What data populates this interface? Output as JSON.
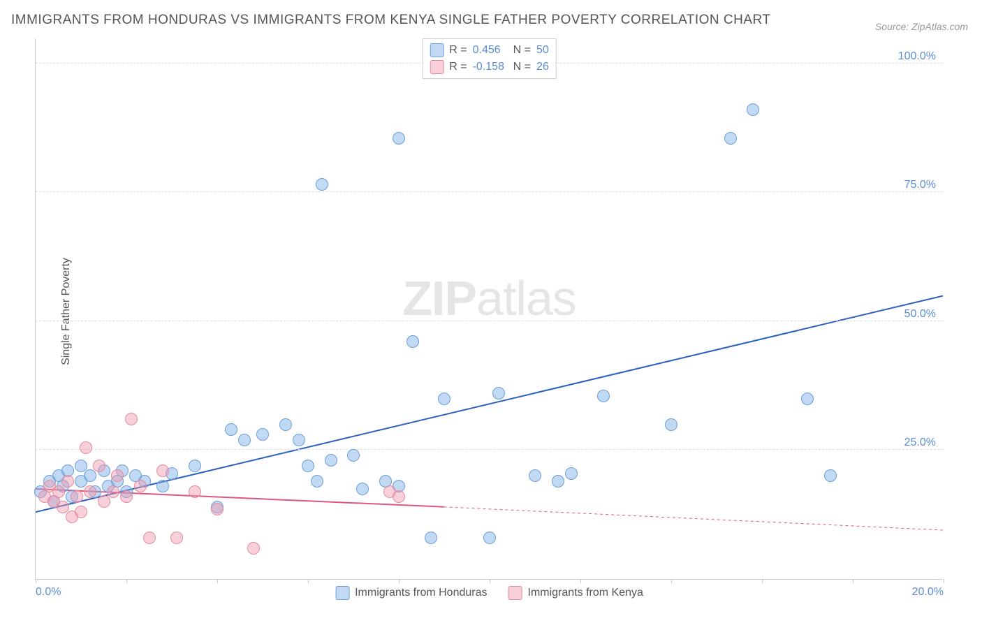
{
  "chart": {
    "type": "scatter",
    "title": "IMMIGRANTS FROM HONDURAS VS IMMIGRANTS FROM KENYA SINGLE FATHER POVERTY CORRELATION CHART",
    "source": "Source: ZipAtlas.com",
    "ylabel": "Single Father Poverty",
    "watermark_zip": "ZIP",
    "watermark_atlas": "atlas",
    "xlim": [
      0,
      20
    ],
    "ylim": [
      0,
      105
    ],
    "yticks": [
      25,
      50,
      75,
      100
    ],
    "ytick_labels": [
      "25.0%",
      "50.0%",
      "75.0%",
      "100.0%"
    ],
    "xtick_marks": [
      0,
      2,
      4,
      6,
      8,
      10,
      12,
      14,
      16,
      18,
      20
    ],
    "xaxis_labels": [
      {
        "x": 0,
        "label": "0.0%"
      },
      {
        "x": 20,
        "label": "20.0%"
      }
    ],
    "background_color": "#ffffff",
    "grid_color": "#dddddd",
    "axis_color": "#cccccc",
    "tick_label_color": "#5a8dd6",
    "point_radius": 9,
    "line_width": 2,
    "series": [
      {
        "name": "Immigrants from Honduras",
        "r_value": "0.456",
        "n_value": "50",
        "point_fill": "rgba(120,170,230,0.45)",
        "point_stroke": "#6a9fd8",
        "line_color": "#2b60c0",
        "line_dash_extend": false,
        "trend": {
          "x1": 0,
          "y1": 13,
          "x2": 20,
          "y2": 55
        },
        "data": [
          {
            "x": 0.1,
            "y": 17
          },
          {
            "x": 0.3,
            "y": 19
          },
          {
            "x": 0.4,
            "y": 15
          },
          {
            "x": 0.5,
            "y": 20
          },
          {
            "x": 0.6,
            "y": 18
          },
          {
            "x": 0.7,
            "y": 21
          },
          {
            "x": 0.8,
            "y": 16
          },
          {
            "x": 1.0,
            "y": 19
          },
          {
            "x": 1.0,
            "y": 22
          },
          {
            "x": 1.2,
            "y": 20
          },
          {
            "x": 1.3,
            "y": 17
          },
          {
            "x": 1.5,
            "y": 21
          },
          {
            "x": 1.6,
            "y": 18
          },
          {
            "x": 1.8,
            "y": 19
          },
          {
            "x": 1.9,
            "y": 21
          },
          {
            "x": 2.0,
            "y": 17
          },
          {
            "x": 2.2,
            "y": 20
          },
          {
            "x": 2.4,
            "y": 19
          },
          {
            "x": 2.8,
            "y": 18
          },
          {
            "x": 3.0,
            "y": 20.5
          },
          {
            "x": 3.5,
            "y": 22
          },
          {
            "x": 4.0,
            "y": 14
          },
          {
            "x": 4.3,
            "y": 29
          },
          {
            "x": 4.6,
            "y": 27
          },
          {
            "x": 5.0,
            "y": 28
          },
          {
            "x": 5.5,
            "y": 30
          },
          {
            "x": 5.8,
            "y": 27
          },
          {
            "x": 6.0,
            "y": 22
          },
          {
            "x": 6.2,
            "y": 19
          },
          {
            "x": 6.3,
            "y": 76.5
          },
          {
            "x": 6.5,
            "y": 23
          },
          {
            "x": 7.0,
            "y": 24
          },
          {
            "x": 7.2,
            "y": 17.5
          },
          {
            "x": 7.7,
            "y": 19
          },
          {
            "x": 8.0,
            "y": 85.5
          },
          {
            "x": 8.0,
            "y": 18
          },
          {
            "x": 8.3,
            "y": 46
          },
          {
            "x": 8.7,
            "y": 8
          },
          {
            "x": 9.0,
            "y": 35
          },
          {
            "x": 10.0,
            "y": 8
          },
          {
            "x": 10.2,
            "y": 36
          },
          {
            "x": 11.0,
            "y": 20
          },
          {
            "x": 11.5,
            "y": 19
          },
          {
            "x": 11.8,
            "y": 20.5
          },
          {
            "x": 12.5,
            "y": 35.5
          },
          {
            "x": 14.0,
            "y": 30
          },
          {
            "x": 15.3,
            "y": 85.5
          },
          {
            "x": 15.8,
            "y": 91
          },
          {
            "x": 17.0,
            "y": 35
          },
          {
            "x": 17.5,
            "y": 20
          }
        ]
      },
      {
        "name": "Immigrants from Kenya",
        "r_value": "-0.158",
        "n_value": "26",
        "point_fill": "rgba(240,150,170,0.45)",
        "point_stroke": "#e58aa0",
        "line_color": "#e05680",
        "line_dash_extend": true,
        "trend": {
          "x1": 0,
          "y1": 17.5,
          "x2": 9,
          "y2": 14,
          "x3": 20,
          "y3": 9.5
        },
        "data": [
          {
            "x": 0.2,
            "y": 16
          },
          {
            "x": 0.3,
            "y": 18
          },
          {
            "x": 0.4,
            "y": 15
          },
          {
            "x": 0.5,
            "y": 17
          },
          {
            "x": 0.6,
            "y": 14
          },
          {
            "x": 0.7,
            "y": 19
          },
          {
            "x": 0.8,
            "y": 12
          },
          {
            "x": 0.9,
            "y": 16
          },
          {
            "x": 1.0,
            "y": 13
          },
          {
            "x": 1.1,
            "y": 25.5
          },
          {
            "x": 1.2,
            "y": 17
          },
          {
            "x": 1.4,
            "y": 22
          },
          {
            "x": 1.5,
            "y": 15
          },
          {
            "x": 1.7,
            "y": 17
          },
          {
            "x": 1.8,
            "y": 20
          },
          {
            "x": 2.0,
            "y": 16
          },
          {
            "x": 2.1,
            "y": 31
          },
          {
            "x": 2.3,
            "y": 18
          },
          {
            "x": 2.5,
            "y": 8
          },
          {
            "x": 2.8,
            "y": 21
          },
          {
            "x": 3.1,
            "y": 8
          },
          {
            "x": 3.5,
            "y": 17
          },
          {
            "x": 4.0,
            "y": 13.5
          },
          {
            "x": 4.8,
            "y": 6
          },
          {
            "x": 7.8,
            "y": 17
          },
          {
            "x": 8.0,
            "y": 16
          }
        ]
      }
    ],
    "legend_top": {
      "r_label": "R =",
      "n_label": "N ="
    }
  }
}
